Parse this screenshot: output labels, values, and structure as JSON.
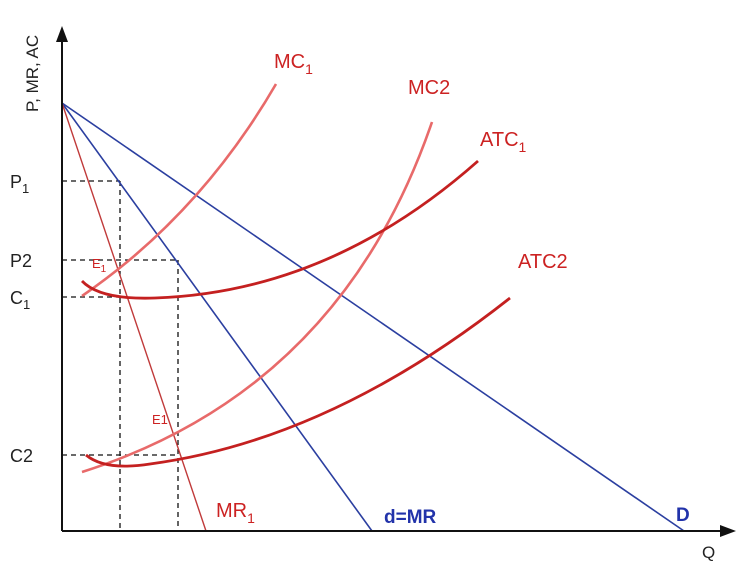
{
  "axes": {
    "y_label": "P, MR, AC",
    "x_label": "Q"
  },
  "price_labels": {
    "p1": {
      "main": "P",
      "sub": "1"
    },
    "p2": "P2",
    "c1": {
      "main": "C",
      "sub": "1"
    },
    "c2": "C2"
  },
  "curve_labels": {
    "mc1": {
      "main": "MC",
      "sub": "1"
    },
    "mc2": "MC2",
    "atc1": {
      "main": "ATC",
      "sub": "1"
    },
    "atc2": "ATC2",
    "mr1": {
      "main": "MR",
      "sub": "1"
    },
    "dmr": "d=MR",
    "d": "D"
  },
  "point_labels": {
    "e1": {
      "main": "E",
      "sub": "1"
    },
    "e2": "E1"
  },
  "colors": {
    "mc": "#e86a6a",
    "atc": "#c42020",
    "demand": "#2b3fa0",
    "mr1": "#c03a3a",
    "dashed": "#111111",
    "axis": "#111111"
  }
}
